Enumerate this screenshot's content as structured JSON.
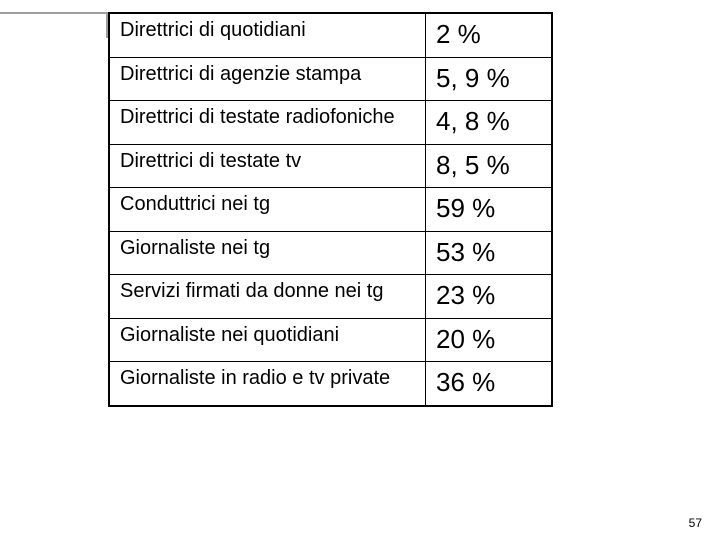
{
  "table": {
    "rows": [
      {
        "label": "Direttrici di quotidiani",
        "value": "2 %"
      },
      {
        "label": "Direttrici di agenzie stampa",
        "value": "5, 9 %"
      },
      {
        "label": "Direttrici di testate radiofoniche",
        "value": "4, 8 %"
      },
      {
        "label": "Direttrici di testate tv",
        "value": "8, 5 %"
      },
      {
        "label": "Conduttrici nei tg",
        "value": "59 %"
      },
      {
        "label": "Giornaliste nei tg",
        "value": "53 %"
      },
      {
        "label": "Servizi firmati da donne nei tg",
        "value": "23 %"
      },
      {
        "label": "Giornaliste nei quotidiani",
        "value": "20 %"
      },
      {
        "label": "Giornaliste in radio e tv private",
        "value": "36 %"
      }
    ]
  },
  "page_number": "57"
}
